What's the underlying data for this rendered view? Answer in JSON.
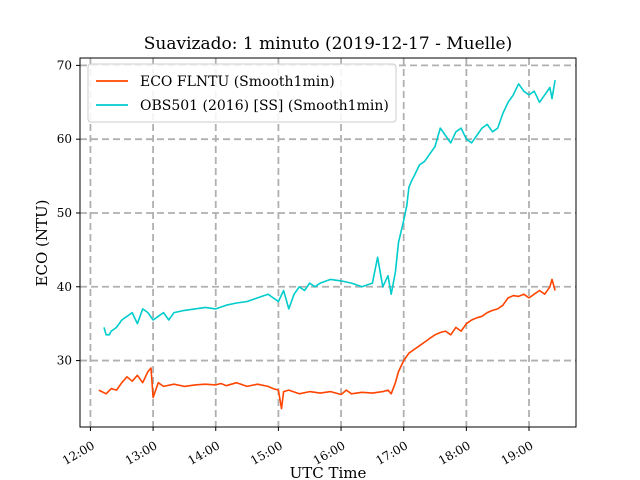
{
  "chart_data": {
    "type": "line",
    "title": "Suavizado: 1 minuto (2019-12-17 - Muelle)",
    "xlabel": "UTC Time",
    "ylabel": "ECO (NTU)",
    "x_range": [
      "11:50",
      "19:45"
    ],
    "ylim": [
      21,
      71
    ],
    "x_ticks": [
      "12:00",
      "13:00",
      "14:00",
      "15:00",
      "16:00",
      "17:00",
      "18:00",
      "19:00"
    ],
    "y_ticks": [
      30,
      40,
      50,
      60,
      70
    ],
    "grid": true,
    "legend_position": "upper-left",
    "series": [
      {
        "name": "ECO FLNTU (Smooth1min)",
        "color": "#ff4500",
        "x": [
          "12:08",
          "12:15",
          "12:20",
          "12:25",
          "12:30",
          "12:35",
          "12:40",
          "12:45",
          "12:50",
          "12:55",
          "12:58",
          "13:00",
          "13:05",
          "13:10",
          "13:20",
          "13:30",
          "13:40",
          "13:50",
          "14:00",
          "14:05",
          "14:10",
          "14:15",
          "14:20",
          "14:30",
          "14:40",
          "14:50",
          "14:55",
          "15:00",
          "15:03",
          "15:05",
          "15:10",
          "15:20",
          "15:30",
          "15:40",
          "15:50",
          "16:00",
          "16:05",
          "16:10",
          "16:20",
          "16:30",
          "16:40",
          "16:45",
          "16:48",
          "16:52",
          "16:55",
          "17:00",
          "17:05",
          "17:10",
          "17:15",
          "17:20",
          "17:25",
          "17:30",
          "17:35",
          "17:40",
          "17:45",
          "17:50",
          "17:55",
          "18:00",
          "18:05",
          "18:10",
          "18:15",
          "18:20",
          "18:25",
          "18:30",
          "18:35",
          "18:40",
          "18:45",
          "18:50",
          "18:55",
          "19:00",
          "19:05",
          "19:10",
          "19:15",
          "19:20",
          "19:22",
          "19:25"
        ],
        "y": [
          26.0,
          25.5,
          26.2,
          26.0,
          27.0,
          27.8,
          27.2,
          28.0,
          27.0,
          28.5,
          29.0,
          25.0,
          27.0,
          26.5,
          26.8,
          26.5,
          26.7,
          26.8,
          26.7,
          26.9,
          26.6,
          26.8,
          27.0,
          26.5,
          26.8,
          26.5,
          26.2,
          26.0,
          23.5,
          25.8,
          26.0,
          25.5,
          25.8,
          25.6,
          25.8,
          25.4,
          26.0,
          25.5,
          25.7,
          25.6,
          25.8,
          26.0,
          25.5,
          27.0,
          28.5,
          30.0,
          31.0,
          31.5,
          32.0,
          32.5,
          33.0,
          33.5,
          33.8,
          34.0,
          33.5,
          34.5,
          34.0,
          35.0,
          35.5,
          35.8,
          36.0,
          36.5,
          36.8,
          37.0,
          37.5,
          38.5,
          38.8,
          38.7,
          39.0,
          38.5,
          39.0,
          39.5,
          39.0,
          40.0,
          41.0,
          39.5
        ]
      },
      {
        "name": "OBS501 (2016) [SS] (Smooth1min)",
        "color": "#00cccc",
        "x": [
          "12:13",
          "12:15",
          "12:18",
          "12:20",
          "12:25",
          "12:30",
          "12:35",
          "12:40",
          "12:45",
          "12:50",
          "12:55",
          "13:00",
          "13:05",
          "13:10",
          "13:15",
          "13:20",
          "13:30",
          "13:40",
          "13:50",
          "14:00",
          "14:10",
          "14:20",
          "14:30",
          "14:40",
          "14:50",
          "14:55",
          "15:00",
          "15:05",
          "15:10",
          "15:15",
          "15:20",
          "15:25",
          "15:30",
          "15:35",
          "15:40",
          "15:50",
          "16:00",
          "16:10",
          "16:20",
          "16:30",
          "16:35",
          "16:40",
          "16:45",
          "16:48",
          "16:52",
          "16:55",
          "17:00",
          "17:03",
          "17:05",
          "17:08",
          "17:10",
          "17:15",
          "17:20",
          "17:25",
          "17:30",
          "17:35",
          "17:40",
          "17:45",
          "17:50",
          "17:55",
          "18:00",
          "18:05",
          "18:10",
          "18:15",
          "18:20",
          "18:25",
          "18:30",
          "18:35",
          "18:40",
          "18:45",
          "18:50",
          "18:55",
          "19:00",
          "19:05",
          "19:10",
          "19:15",
          "19:20",
          "19:22",
          "19:25"
        ],
        "y": [
          34.5,
          33.5,
          33.5,
          34.0,
          34.5,
          35.5,
          36.0,
          36.5,
          35.0,
          37.0,
          36.5,
          35.5,
          36.0,
          36.5,
          35.5,
          36.5,
          36.8,
          37.0,
          37.2,
          37.0,
          37.5,
          37.8,
          38.0,
          38.5,
          39.0,
          38.5,
          38.0,
          39.5,
          37.0,
          39.0,
          40.0,
          39.5,
          40.5,
          40.0,
          40.5,
          41.0,
          40.8,
          40.5,
          40.0,
          40.5,
          44.0,
          40.0,
          41.5,
          39.0,
          42.0,
          46.0,
          49.0,
          51.0,
          53.5,
          54.5,
          55.0,
          56.5,
          57.0,
          58.0,
          59.0,
          61.5,
          60.5,
          59.5,
          61.0,
          61.5,
          60.0,
          59.5,
          60.5,
          61.5,
          62.0,
          61.0,
          61.5,
          63.5,
          65.0,
          66.0,
          67.5,
          66.5,
          66.0,
          66.5,
          65.0,
          66.0,
          67.0,
          65.5,
          68.0
        ]
      }
    ]
  }
}
